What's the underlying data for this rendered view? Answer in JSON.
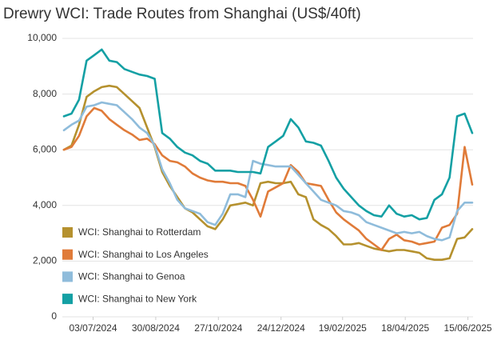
{
  "chart_data": {
    "type": "line",
    "title": "Drewry WCI: Trade Routes from Shanghai (US$/40ft)",
    "x": [
      "2024-06-06",
      "2024-06-13",
      "2024-06-20",
      "2024-06-27",
      "2024-07-04",
      "2024-07-11",
      "2024-07-18",
      "2024-07-25",
      "2024-08-01",
      "2024-08-08",
      "2024-08-15",
      "2024-08-22",
      "2024-08-29",
      "2024-09-05",
      "2024-09-12",
      "2024-09-19",
      "2024-09-26",
      "2024-10-03",
      "2024-10-10",
      "2024-10-17",
      "2024-10-24",
      "2024-10-31",
      "2024-11-07",
      "2024-11-14",
      "2024-11-21",
      "2024-11-28",
      "2024-12-05",
      "2024-12-12",
      "2024-12-19",
      "2024-12-26",
      "2025-01-02",
      "2025-01-09",
      "2025-01-16",
      "2025-01-23",
      "2025-01-30",
      "2025-02-06",
      "2025-02-13",
      "2025-02-20",
      "2025-02-27",
      "2025-03-06",
      "2025-03-13",
      "2025-03-20",
      "2025-03-27",
      "2025-04-03",
      "2025-04-10",
      "2025-04-17",
      "2025-04-24",
      "2025-05-01",
      "2025-05-08",
      "2025-05-15",
      "2025-05-22",
      "2025-05-29",
      "2025-06-05",
      "2025-06-12",
      "2025-06-19"
    ],
    "xlim": [
      "2024-06-06",
      "2025-06-19"
    ],
    "xticks": [
      {
        "value": "2024-07-03",
        "label": "03/07/2024"
      },
      {
        "value": "2024-08-30",
        "label": "30/08/2024"
      },
      {
        "value": "2024-10-27",
        "label": "27/10/2024"
      },
      {
        "value": "2024-12-24",
        "label": "24/12/2024"
      },
      {
        "value": "2025-02-19",
        "label": "19/02/2025"
      },
      {
        "value": "2025-04-18",
        "label": "18/04/2025"
      },
      {
        "value": "2025-06-15",
        "label": "15/06/2025"
      }
    ],
    "ylim": [
      0,
      10000
    ],
    "yticks": [
      0,
      {
        "value": 2000,
        "label": "2,000"
      },
      {
        "value": 4000,
        "label": "4,000"
      },
      {
        "value": 6000,
        "label": "6,000"
      },
      {
        "value": 8000,
        "label": "8,000"
      },
      {
        "value": 10000,
        "label": "10,000"
      }
    ],
    "grid": true,
    "legend": "lower left",
    "series": [
      {
        "name": "WCI: Shanghai to Rotterdam",
        "color": "#b5912e",
        "values": [
          6000,
          6150,
          6900,
          7900,
          8100,
          8250,
          8300,
          8250,
          8000,
          7750,
          7500,
          6800,
          6100,
          5200,
          4700,
          4300,
          3900,
          3750,
          3500,
          3250,
          3150,
          3500,
          4000,
          4050,
          4100,
          4000,
          4800,
          4850,
          4800,
          4800,
          4850,
          4400,
          4300,
          3500,
          3300,
          3150,
          2900,
          2600,
          2600,
          2650,
          2550,
          2450,
          2400,
          2350,
          2400,
          2400,
          2350,
          2300,
          2100,
          2050,
          2050,
          2100,
          2800,
          2850,
          3150
        ]
      },
      {
        "name": "WCI: Shanghai to Los Angeles",
        "color": "#e07b39",
        "values": [
          6000,
          6100,
          6500,
          7200,
          7500,
          7400,
          7100,
          6900,
          6700,
          6550,
          6350,
          6400,
          6200,
          5800,
          5600,
          5550,
          5400,
          5150,
          5000,
          4900,
          4850,
          4850,
          4800,
          4800,
          4700,
          4200,
          3600,
          4500,
          4650,
          4800,
          5450,
          5200,
          4800,
          4750,
          4700,
          4200,
          3750,
          3500,
          3300,
          3100,
          2800,
          2600,
          2400,
          2800,
          2950,
          2750,
          2700,
          2600,
          2650,
          2700,
          3200,
          3300,
          3700,
          6100,
          4750
        ]
      },
      {
        "name": "WCI: Shanghai to Genoa",
        "color": "#8fbcdb",
        "values": [
          6700,
          6900,
          7050,
          7550,
          7600,
          7700,
          7650,
          7600,
          7350,
          7100,
          6800,
          6600,
          6150,
          5300,
          4800,
          4200,
          3900,
          3800,
          3700,
          3400,
          3300,
          3700,
          4400,
          4400,
          4300,
          5600,
          5500,
          5450,
          5400,
          5400,
          5400,
          5100,
          4800,
          4500,
          4200,
          4100,
          4000,
          3800,
          3750,
          3650,
          3400,
          3300,
          3200,
          3100,
          3000,
          3050,
          3000,
          3050,
          2900,
          2800,
          2750,
          2850,
          3800,
          4100,
          4100
        ]
      },
      {
        "name": "WCI: Shanghai to New York",
        "color": "#14a0a4",
        "values": [
          7200,
          7300,
          7800,
          9200,
          9400,
          9600,
          9200,
          9150,
          8900,
          8800,
          8700,
          8650,
          8550,
          6600,
          6400,
          6100,
          5900,
          5800,
          5600,
          5500,
          5250,
          5250,
          5250,
          5200,
          5200,
          5200,
          5150,
          6100,
          6300,
          6500,
          7100,
          6800,
          6300,
          6250,
          6150,
          5600,
          5000,
          4600,
          4300,
          4000,
          3800,
          3650,
          3600,
          4000,
          3700,
          3600,
          3650,
          3500,
          3550,
          4200,
          4400,
          5000,
          7200,
          7300,
          6600
        ]
      }
    ]
  }
}
